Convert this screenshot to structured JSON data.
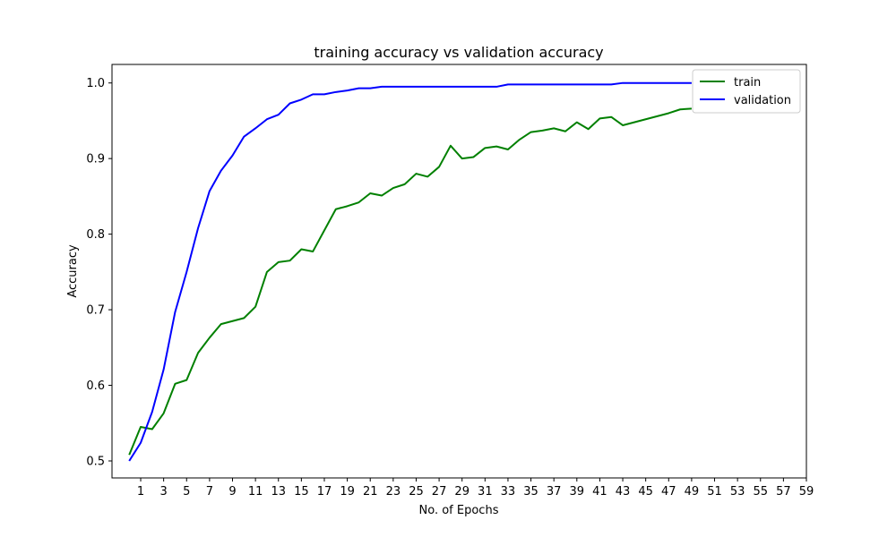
{
  "chart_data": {
    "type": "line",
    "title": "training accuracy vs validation accuracy",
    "xlabel": "No. of Epochs",
    "ylabel": "Accuracy",
    "xlim": [
      -1.5,
      59
    ],
    "ylim": [
      0.4775,
      1.0245
    ],
    "x_ticks": [
      "1",
      "3",
      "5",
      "7",
      "9",
      "11",
      "13",
      "15",
      "17",
      "19",
      "21",
      "23",
      "25",
      "27",
      "29",
      "31",
      "33",
      "35",
      "37",
      "39",
      "41",
      "43",
      "45",
      "47",
      "49",
      "51",
      "53",
      "55",
      "57",
      "59"
    ],
    "y_ticks": [
      "0.5",
      "0.6",
      "0.7",
      "0.8",
      "0.9",
      "1.0"
    ],
    "grid": false,
    "legend_position": "top-right",
    "x": [
      0,
      1,
      2,
      3,
      4,
      5,
      6,
      7,
      8,
      9,
      10,
      11,
      12,
      13,
      14,
      15,
      16,
      17,
      18,
      19,
      20,
      21,
      22,
      23,
      24,
      25,
      26,
      27,
      28,
      29,
      30,
      31,
      32,
      33,
      34,
      35,
      36,
      37,
      38,
      39,
      40,
      41,
      42,
      43,
      44,
      45,
      46,
      47,
      48,
      49
    ],
    "series": [
      {
        "name": "train",
        "color": "#008000",
        "values": [
          0.508,
          0.545,
          0.542,
          0.563,
          0.602,
          0.607,
          0.643,
          0.663,
          0.681,
          0.685,
          0.689,
          0.704,
          0.75,
          0.763,
          0.765,
          0.78,
          0.777,
          0.805,
          0.833,
          0.837,
          0.842,
          0.854,
          0.851,
          0.861,
          0.866,
          0.88,
          0.876,
          0.889,
          0.917,
          0.9,
          0.902,
          0.914,
          0.916,
          0.912,
          0.925,
          0.935,
          0.937,
          0.94,
          0.936,
          0.948,
          0.939,
          0.953,
          0.955,
          0.944,
          0.948,
          0.952,
          0.956,
          0.96,
          0.965,
          0.966
        ]
      },
      {
        "name": "validation",
        "color": "#0000ff",
        "values": [
          0.5,
          0.524,
          0.565,
          0.621,
          0.697,
          0.75,
          0.808,
          0.857,
          0.884,
          0.904,
          0.929,
          0.94,
          0.952,
          0.958,
          0.973,
          0.978,
          0.985,
          0.985,
          0.988,
          0.99,
          0.993,
          0.993,
          0.995,
          0.995,
          0.995,
          0.995,
          0.995,
          0.995,
          0.995,
          0.995,
          0.995,
          0.995,
          0.995,
          0.998,
          0.998,
          0.998,
          0.998,
          0.998,
          0.998,
          0.998,
          0.998,
          0.998,
          0.998,
          1.0,
          1.0,
          1.0,
          1.0,
          1.0,
          1.0,
          1.0
        ]
      }
    ]
  }
}
